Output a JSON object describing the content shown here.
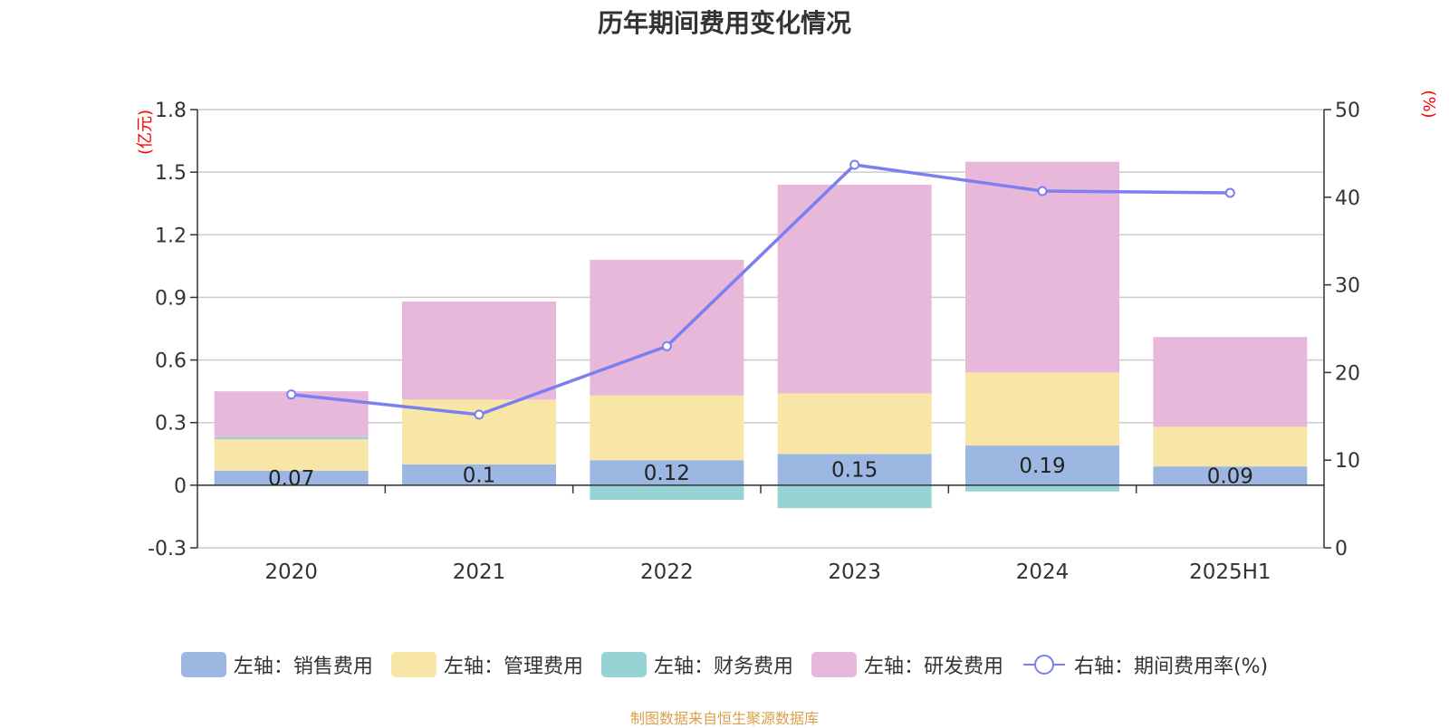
{
  "title": "历年期间费用变化情况",
  "footer": "制图数据来自恒生聚源数据库",
  "chart_data": {
    "type": "bar",
    "stacked": true,
    "categories": [
      "2020",
      "2021",
      "2022",
      "2023",
      "2024",
      "2025H1"
    ],
    "left_axis": {
      "unit": "(亿元)",
      "ylim": [
        -0.3,
        1.8
      ],
      "ticks": [
        "-0.3",
        "0",
        "0.3",
        "0.6",
        "0.9",
        "1.2",
        "1.5",
        "1.8"
      ]
    },
    "right_axis": {
      "unit": "(%)",
      "ylim": [
        0,
        50
      ],
      "ticks": [
        "0",
        "10",
        "20",
        "30",
        "40",
        "50"
      ]
    },
    "series": [
      {
        "name": "左轴：销售费用",
        "axis": "left",
        "kind": "bar",
        "color": "#9cb8e2",
        "values": [
          0.07,
          0.1,
          0.12,
          0.15,
          0.19,
          0.09
        ],
        "labels": [
          "0.07",
          "0.1",
          "0.12",
          "0.15",
          "0.19",
          "0.09"
        ]
      },
      {
        "name": "左轴：管理费用",
        "axis": "left",
        "kind": "bar",
        "color": "#f7e6a6",
        "values": [
          0.15,
          0.31,
          0.31,
          0.29,
          0.35,
          0.19
        ]
      },
      {
        "name": "左轴：财务费用",
        "axis": "left",
        "kind": "bar",
        "color": "#96d3d4",
        "values": [
          0.01,
          0.0,
          -0.07,
          -0.11,
          -0.03,
          0.0
        ]
      },
      {
        "name": "左轴：研发费用",
        "axis": "left",
        "kind": "bar",
        "color": "#e7b8da",
        "values": [
          0.22,
          0.47,
          0.65,
          1.0,
          1.01,
          0.43
        ]
      },
      {
        "name": "右轴：期间费用率(%)",
        "axis": "right",
        "kind": "line",
        "color": "#7b7fef",
        "values": [
          17.5,
          15.2,
          23.0,
          43.7,
          40.7,
          40.5
        ]
      }
    ],
    "grid": true,
    "legend_position": "bottom"
  }
}
